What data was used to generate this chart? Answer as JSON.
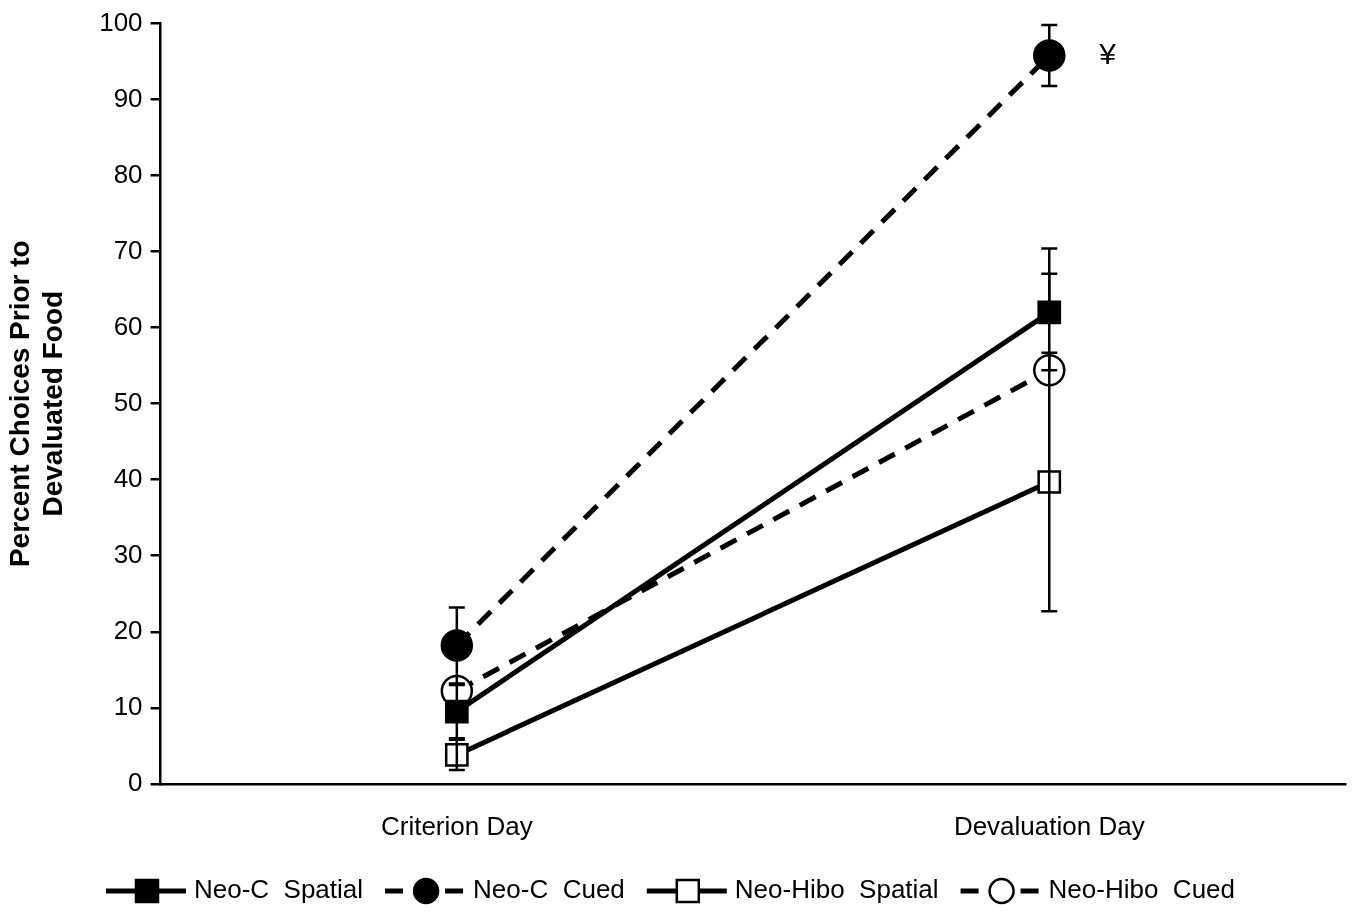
{
  "chart_data": {
    "type": "line",
    "ylabel": "Percent Choices Prior to\nDevaluated Food",
    "categories": [
      "Criterion Day",
      "Devaluation Day"
    ],
    "ylim": [
      0,
      100
    ],
    "yticks": [
      0,
      10,
      20,
      30,
      40,
      50,
      60,
      70,
      80,
      90,
      100
    ],
    "grid": false,
    "legend": "bottom",
    "series": [
      {
        "name": "Neo-C  Spatial",
        "color": "#000000",
        "values": [
          9.5,
          62
        ],
        "errors": [
          3.5,
          [
            62,
            70.4
          ]
        ],
        "marker": "square",
        "line_style": "solid"
      },
      {
        "name": "Neo-C  Cued",
        "color": "#000000",
        "values": [
          18.2,
          95.8
        ],
        "errors": [
          5,
          4
        ],
        "marker": "circle",
        "line_style": "dashed"
      },
      {
        "name": "Neo-Hibo  Spatial",
        "color": "#000000",
        "values": [
          3.8,
          39.7
        ],
        "errors": [
          2,
          17
        ],
        "marker": "square",
        "line_style": "solid"
      },
      {
        "name": "Neo-Hibo  Cued",
        "color": "#000000",
        "values": [
          12.2,
          54.4
        ],
        "errors": [
          null,
          [
            54.4,
            67.1
          ]
        ],
        "marker": "circle",
        "line_style": "dashed"
      }
    ],
    "annotations": [
      {
        "text": "¥",
        "x": "Devaluation Day",
        "y": 95.8
      }
    ]
  }
}
